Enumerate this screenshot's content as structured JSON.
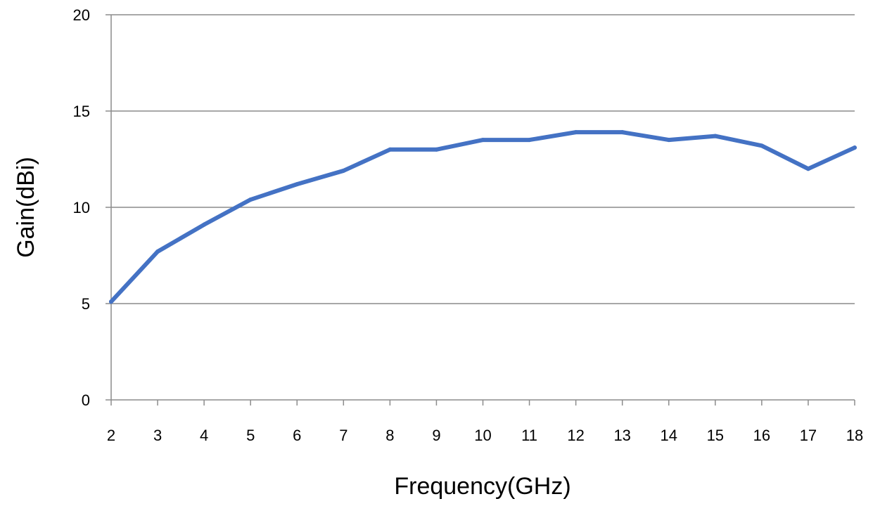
{
  "chart_data": {
    "type": "line",
    "title": "",
    "xlabel": "Frequency(GHz)",
    "ylabel": "Gain(dBi)",
    "xlim": [
      2,
      18
    ],
    "ylim": [
      0,
      20
    ],
    "x_ticks": [
      2,
      3,
      4,
      5,
      6,
      7,
      8,
      9,
      10,
      11,
      12,
      13,
      14,
      15,
      16,
      17,
      18
    ],
    "y_ticks": [
      0,
      5,
      10,
      15,
      20
    ],
    "grid": "horizontal",
    "series": [
      {
        "x": [
          2,
          3,
          4,
          5,
          6,
          7,
          8,
          9,
          10,
          11,
          12,
          13,
          14,
          15,
          16,
          17,
          18
        ],
        "values": [
          5.1,
          7.7,
          9.1,
          10.4,
          11.2,
          11.9,
          13.0,
          13.0,
          13.5,
          13.5,
          13.9,
          13.9,
          13.5,
          13.7,
          13.2,
          12.0,
          13.1
        ],
        "color": "#4472c4"
      }
    ]
  }
}
